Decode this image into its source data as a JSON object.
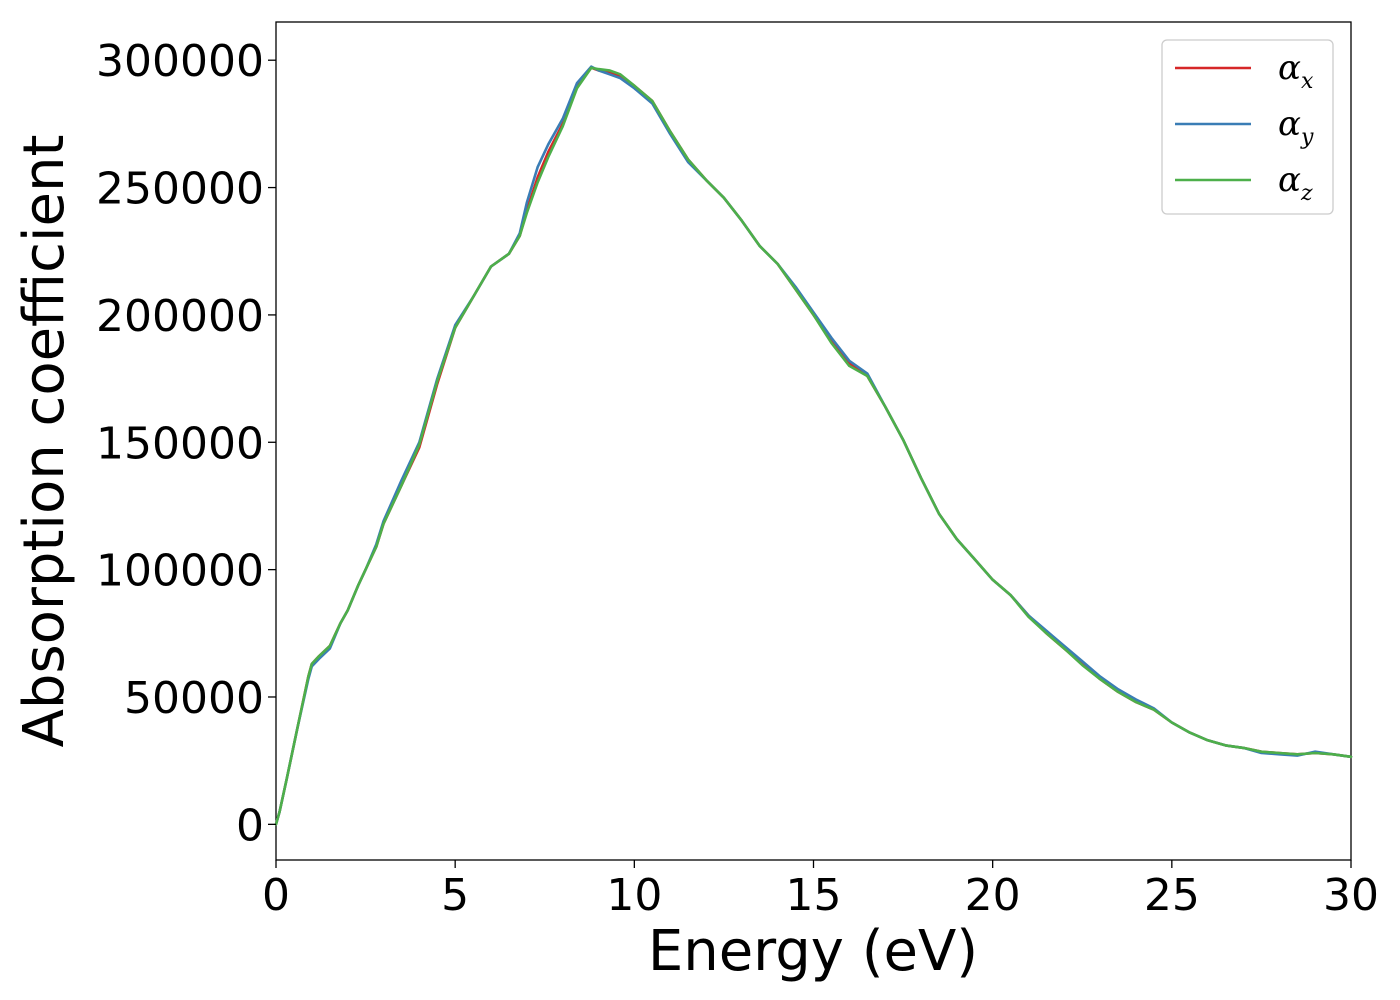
{
  "chart_data": {
    "type": "line",
    "xlabel": "Energy (eV)",
    "ylabel": "Absorption coefficient",
    "xlim": [
      0,
      30
    ],
    "ylim": [
      -14000,
      315000
    ],
    "x_ticks": [
      0,
      5,
      10,
      15,
      20,
      25,
      30
    ],
    "x_tick_labels": [
      "0",
      "5",
      "10",
      "15",
      "20",
      "25",
      "30"
    ],
    "y_ticks": [
      0,
      50000,
      100000,
      150000,
      200000,
      250000,
      300000
    ],
    "y_tick_labels": [
      "0",
      "50000",
      "100000",
      "150000",
      "200000",
      "250000",
      "300000"
    ],
    "grid": false,
    "legend_position": "top-right",
    "x": [
      0,
      0.1,
      0.3,
      0.6,
      0.9,
      1.0,
      1.2,
      1.5,
      1.8,
      2.0,
      2.3,
      2.5,
      2.8,
      3.0,
      3.5,
      4.0,
      4.5,
      5.0,
      5.5,
      6.0,
      6.5,
      6.8,
      7.0,
      7.3,
      7.6,
      8.0,
      8.4,
      8.8,
      9.0,
      9.3,
      9.6,
      10.0,
      10.5,
      11.0,
      11.5,
      12.0,
      12.5,
      13.0,
      13.5,
      14.0,
      14.5,
      15.0,
      15.5,
      16.0,
      16.5,
      17.0,
      17.5,
      18.0,
      18.5,
      19.0,
      19.5,
      20.0,
      20.5,
      21.0,
      21.5,
      22.0,
      22.5,
      23.0,
      23.5,
      24.0,
      24.5,
      25.0,
      25.5,
      26.0,
      26.5,
      27.0,
      27.5,
      28.0,
      28.5,
      29.0,
      29.5,
      30.0
    ],
    "series": [
      {
        "name": "α_x",
        "color": "#d62728",
        "values": [
          0,
          5000,
          18000,
          38000,
          58000,
          63000,
          66000,
          70000,
          79000,
          84000,
          94000,
          100000,
          109000,
          118000,
          133000,
          148000,
          173000,
          195000,
          207000,
          219000,
          224000,
          231000,
          241000,
          254000,
          264000,
          275000,
          290000,
          297000,
          296000,
          295000,
          294000,
          290000,
          284000,
          272000,
          261000,
          253000,
          246000,
          237000,
          227000,
          220000,
          210000,
          200000,
          190000,
          181000,
          176000,
          164000,
          151000,
          136000,
          122000,
          112000,
          104000,
          96000,
          90000,
          82000,
          75000,
          69000,
          63000,
          57000,
          52000,
          48000,
          45000,
          40000,
          36000,
          33000,
          31000,
          30000,
          28500,
          28000,
          27500,
          28000,
          27500,
          26500
        ]
      },
      {
        "name": "α_y",
        "color": "#3a7db5",
        "values": [
          0,
          5000,
          18000,
          38000,
          57000,
          62000,
          65000,
          69000,
          79000,
          84000,
          94000,
          100000,
          110000,
          119000,
          135000,
          150000,
          175000,
          196000,
          207000,
          219000,
          224000,
          232000,
          244000,
          258000,
          267000,
          277000,
          291000,
          297500,
          296000,
          294500,
          293000,
          289000,
          283000,
          271000,
          260000,
          253000,
          246000,
          237000,
          227000,
          220000,
          211000,
          201000,
          191000,
          182000,
          177000,
          164000,
          151000,
          136000,
          122000,
          112000,
          104000,
          96000,
          90000,
          82000,
          76000,
          70000,
          64000,
          58000,
          53000,
          49000,
          45500,
          40000,
          36000,
          33000,
          31000,
          30000,
          28000,
          27500,
          27000,
          28500,
          27500,
          26500
        ]
      },
      {
        "name": "α_z",
        "color": "#4daf4a",
        "values": [
          0,
          5000,
          18000,
          38000,
          58000,
          63000,
          66000,
          70000,
          79000,
          84000,
          94000,
          100000,
          109000,
          118000,
          133000,
          149000,
          174000,
          195000,
          207000,
          219000,
          224000,
          231000,
          240000,
          252000,
          262000,
          274000,
          289000,
          297000,
          296500,
          296000,
          294500,
          290000,
          284000,
          272000,
          261000,
          253000,
          246000,
          237000,
          227000,
          220000,
          210000,
          200000,
          189000,
          180000,
          176000,
          164000,
          151000,
          136000,
          122000,
          112000,
          104000,
          96000,
          90000,
          81500,
          75000,
          69000,
          62500,
          57000,
          52000,
          48000,
          45000,
          40000,
          36000,
          33000,
          31000,
          30000,
          28500,
          28000,
          27500,
          28000,
          27500,
          26500
        ]
      }
    ]
  }
}
